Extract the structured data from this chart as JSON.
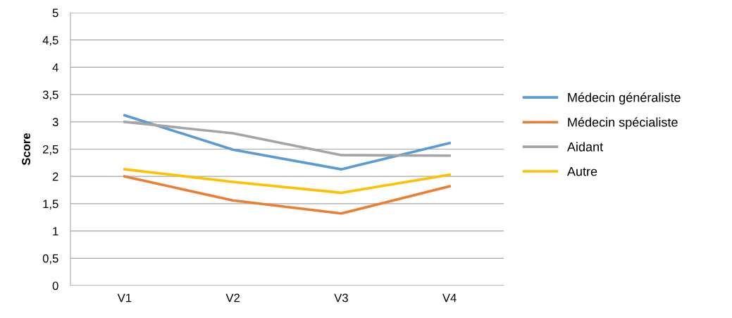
{
  "chart_data": {
    "type": "line",
    "ylabel": "Score",
    "categories": [
      "V1",
      "V2",
      "V3",
      "V4"
    ],
    "series": [
      {
        "name": "Médecin généraliste",
        "color": "#5b9bd5",
        "values": [
          3.12,
          2.49,
          2.13,
          2.61
        ]
      },
      {
        "name": "Médecin spécialiste",
        "color": "#ed7d31",
        "values": [
          2.0,
          1.56,
          1.32,
          1.82
        ]
      },
      {
        "name": "Aidant",
        "color": "#a5a5a5",
        "values": [
          3.0,
          2.79,
          2.39,
          2.38
        ]
      },
      {
        "name": "Autre",
        "color": "#ffc000",
        "values": [
          2.13,
          1.9,
          1.7,
          2.03
        ]
      }
    ],
    "ylim": [
      0,
      5
    ],
    "yticks": [
      0,
      {
        "value": 0.5,
        "label": "0,5"
      },
      1,
      {
        "value": 1.5,
        "label": "1,5"
      },
      2,
      {
        "value": 2.5,
        "label": "2,5"
      },
      3,
      {
        "value": 3.5,
        "label": "3,5"
      },
      4,
      {
        "value": 4.5,
        "label": "4,5"
      },
      5
    ],
    "grid": "y",
    "legend": "right",
    "marker": "none",
    "line_style": "solid"
  }
}
